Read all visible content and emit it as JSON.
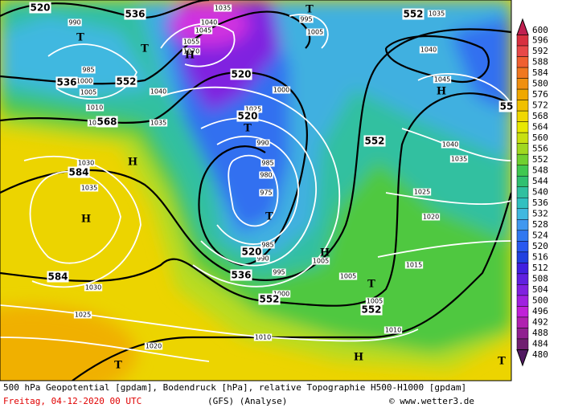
{
  "footer": {
    "description": "500 hPa Geopotential [gpdam], Bodendruck [hPa], relative Topographie H500-H1000 [gpdam]",
    "date": "Freitag, 04-12-2020  00 UTC",
    "model": "(GFS)  (Analyse)",
    "source": "© www.wetter3.de"
  },
  "scale": {
    "labels": [
      600,
      596,
      592,
      588,
      584,
      580,
      576,
      572,
      568,
      564,
      560,
      556,
      552,
      548,
      544,
      540,
      536,
      532,
      528,
      524,
      520,
      516,
      512,
      508,
      504,
      500,
      496,
      492,
      488,
      484,
      480
    ],
    "colors": [
      "#c02050",
      "#d83040",
      "#e84848",
      "#f06030",
      "#f07820",
      "#f09010",
      "#f0a800",
      "#f0c000",
      "#f0d800",
      "#e8e800",
      "#c8e010",
      "#a0d820",
      "#70d030",
      "#40c850",
      "#30c070",
      "#30c0a0",
      "#30c0c0",
      "#40b8e0",
      "#4098f0",
      "#3078f0",
      "#2858f0",
      "#2040e0",
      "#4020e0",
      "#6020e0",
      "#8020e0",
      "#a020e0",
      "#c020d8",
      "#b020b0",
      "#902090",
      "#702070",
      "#501860"
    ]
  },
  "height_labels": [
    "520",
    "536",
    "552",
    "536",
    "552",
    "568",
    "584",
    "520",
    "520",
    "552",
    "584",
    "536",
    "552",
    "552",
    "520",
    "55"
  ],
  "pressure_labels": [
    "990",
    "1035",
    "1040",
    "1045",
    "1055",
    "1070",
    "995",
    "1005",
    "1035",
    "1040",
    "1045",
    "1000",
    "985",
    "1000",
    "1005",
    "1010",
    "1015",
    "1040",
    "1035",
    "1025",
    "990",
    "985",
    "980",
    "975",
    "1030",
    "1035",
    "1030",
    "1025",
    "1020",
    "1010",
    "1000",
    "995",
    "990",
    "985",
    "1005",
    "1005",
    "1005",
    "1010",
    "1015",
    "1020",
    "1025",
    "1035",
    "1040"
  ],
  "center_labels": [
    "T",
    "T",
    "H",
    "T",
    "H",
    "T",
    "H",
    "H",
    "T",
    "H",
    "T",
    "H",
    "T",
    "T"
  ]
}
